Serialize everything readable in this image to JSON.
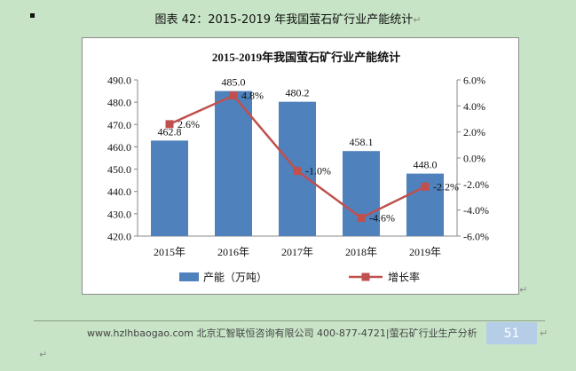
{
  "caption": {
    "text": "图表  42：2015-2019 年我国萤石矿行业产能统计",
    "return_mark": "↵"
  },
  "chart_data": {
    "type": "bar",
    "title": "2015-2019年我国萤石矿行业产能统计",
    "categories": [
      "2015年",
      "2016年",
      "2017年",
      "2018年",
      "2019年"
    ],
    "series": [
      {
        "name": "产能（万吨）",
        "type": "bar",
        "axis": "left",
        "color": "#4f81bd",
        "values": [
          462.8,
          485.0,
          480.2,
          458.1,
          448.0
        ],
        "labels": [
          "462.8",
          "485.0",
          "480.2",
          "458.1",
          "448.0"
        ]
      },
      {
        "name": "增长率",
        "type": "line",
        "axis": "right",
        "color": "#c0504d",
        "values": [
          2.6,
          4.8,
          -1.0,
          -4.6,
          -2.2
        ],
        "labels": [
          "2.6%",
          "4.8%",
          "-1.0%",
          "-4.6%",
          "-2.2%"
        ]
      }
    ],
    "y_left": {
      "ylim": [
        420,
        490
      ],
      "ticks": [
        "420.0",
        "430.0",
        "440.0",
        "450.0",
        "460.0",
        "470.0",
        "480.0",
        "490.0"
      ]
    },
    "y_right": {
      "ylim": [
        -6,
        6
      ],
      "ticks": [
        "-6.0%",
        "-4.0%",
        "-2.0%",
        "0.0%",
        "2.0%",
        "4.0%",
        "6.0%"
      ]
    },
    "legend_position": "bottom",
    "grid": false
  },
  "footer": {
    "text": "www.hzlhbaogao.com 北京汇智联恒咨询有限公司  400-877-4721|萤石矿行业生产分析",
    "page_number": "51",
    "return_mark": "↵"
  }
}
